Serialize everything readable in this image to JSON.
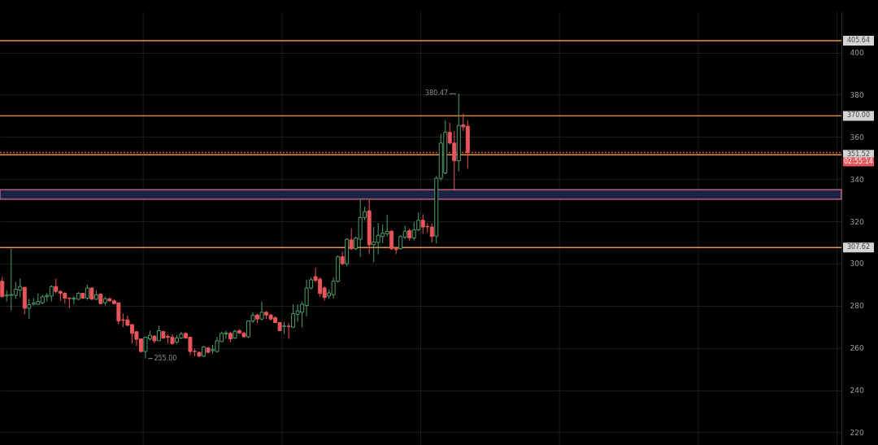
{
  "chart_data": {
    "type": "candlestick",
    "categories": [
      null,
      null,
      null,
      null,
      null,
      null,
      null,
      null,
      null,
      null,
      null,
      null,
      null,
      null,
      null,
      null,
      null,
      null,
      null,
      null,
      null,
      null,
      null,
      null,
      null,
      null,
      null,
      null,
      null,
      null,
      null,
      null,
      null,
      null,
      null,
      null,
      null,
      null,
      null,
      null,
      null,
      null,
      null,
      null,
      null,
      null,
      null,
      null,
      null,
      null,
      null,
      null,
      null,
      null,
      null,
      null,
      null,
      null,
      null,
      null,
      null,
      null,
      null,
      null,
      null,
      null,
      null,
      null,
      null,
      null,
      null,
      null,
      null,
      null,
      null,
      null,
      null,
      null,
      null,
      null,
      null,
      null,
      null,
      null,
      null,
      null,
      null,
      null,
      null,
      null,
      null,
      null,
      null,
      null,
      null,
      null,
      null,
      null,
      null,
      null,
      null,
      null,
      null,
      null,
      null,
      null,
      null,
      null,
      null,
      null,
      null,
      null,
      null,
      null,
      null,
      null,
      null,
      null,
      null,
      null,
      null,
      null,
      null,
      null,
      null,
      null,
      null,
      null,
      null,
      null,
      null,
      null,
      null,
      null,
      null,
      null,
      null,
      null,
      null,
      null,
      null,
      null,
      null,
      null,
      null,
      null,
      null,
      null,
      null,
      null,
      null,
      null,
      null,
      null,
      null,
      null,
      null,
      null,
      null,
      null,
      null,
      null,
      null,
      null,
      null,
      null,
      null,
      null,
      null,
      null,
      null,
      null,
      null,
      null,
      null,
      null,
      null,
      null,
      null,
      null,
      null,
      null,
      null,
      null,
      null,
      null,
      null,
      null
    ],
    "ohlc": [
      [
        291.6,
        293.6,
        284.0,
        284.3
      ],
      [
        284.6,
        287.2,
        282.0,
        285.2
      ],
      [
        284.9,
        307.0,
        277.9,
        285.3
      ],
      [
        284.9,
        291.3,
        283.3,
        287.8
      ],
      [
        287.4,
        292.9,
        284.0,
        289.1
      ],
      [
        288.7,
        289.0,
        275.9,
        278.8
      ],
      [
        278.8,
        283.3,
        273.7,
        280.5
      ],
      [
        280.7,
        283.6,
        280.1,
        281.3
      ],
      [
        280.7,
        285.9,
        280.7,
        282.0
      ],
      [
        281.4,
        285.2,
        280.7,
        284.3
      ],
      [
        284.3,
        285.9,
        282.0,
        284.9
      ],
      [
        284.6,
        289.7,
        282.0,
        289.1
      ],
      [
        289.1,
        292.9,
        285.9,
        286.8
      ],
      [
        286.8,
        287.4,
        282.3,
        285.9
      ],
      [
        285.9,
        286.5,
        281.0,
        283.6
      ],
      [
        283.6,
        284.0,
        278.8,
        283.4
      ],
      [
        283.1,
        284.6,
        280.7,
        283.6
      ],
      [
        283.1,
        286.5,
        282.7,
        285.9
      ],
      [
        285.9,
        286.1,
        283.3,
        283.6
      ],
      [
        283.6,
        290.0,
        282.7,
        288.4
      ],
      [
        288.4,
        288.7,
        282.7,
        283.1
      ],
      [
        283.1,
        287.2,
        282.7,
        285.2
      ],
      [
        285.5,
        285.9,
        280.7,
        281.0
      ],
      [
        281.4,
        284.3,
        280.1,
        283.3
      ],
      [
        283.3,
        283.9,
        282.0,
        282.3
      ],
      [
        282.3,
        283.1,
        280.7,
        281.0
      ],
      [
        281.4,
        281.4,
        271.1,
        272.8
      ],
      [
        273.3,
        276.3,
        269.9,
        273.1
      ],
      [
        273.3,
        275.4,
        270.5,
        270.7
      ],
      [
        271.1,
        271.1,
        262.2,
        266.9
      ],
      [
        267.7,
        267.7,
        260.9,
        264.1
      ],
      [
        264.3,
        264.3,
        257.9,
        258.3
      ],
      [
        258.3,
        265.1,
        255.0,
        265.1
      ],
      [
        264.3,
        268.2,
        263.4,
        266.0
      ],
      [
        265.6,
        266.0,
        262.2,
        263.4
      ],
      [
        263.4,
        270.5,
        263.4,
        268.2
      ],
      [
        267.7,
        268.2,
        264.3,
        264.7
      ],
      [
        265.5,
        266.6,
        262.1,
        265.1
      ],
      [
        265.1,
        266.6,
        261.5,
        262.1
      ],
      [
        262.8,
        266.0,
        261.8,
        264.7
      ],
      [
        264.7,
        267.7,
        264.3,
        266.6
      ],
      [
        266.9,
        267.3,
        264.3,
        264.7
      ],
      [
        265.1,
        265.1,
        256.6,
        258.3
      ],
      [
        258.4,
        259.6,
        256.1,
        258.3
      ],
      [
        257.9,
        258.3,
        255.6,
        256.1
      ],
      [
        256.1,
        260.9,
        255.7,
        260.5
      ],
      [
        260.0,
        260.5,
        257.4,
        257.9
      ],
      [
        258.7,
        261.5,
        257.4,
        259.2
      ],
      [
        258.3,
        265.3,
        257.9,
        263.4
      ],
      [
        263.0,
        267.7,
        262.8,
        266.9
      ],
      [
        266.6,
        268.2,
        264.3,
        267.1
      ],
      [
        266.9,
        267.7,
        262.8,
        264.3
      ],
      [
        264.7,
        268.6,
        264.3,
        267.9
      ],
      [
        268.2,
        268.9,
        266.6,
        267.1
      ],
      [
        267.1,
        267.7,
        265.1,
        265.3
      ],
      [
        265.3,
        273.0,
        264.7,
        272.8
      ],
      [
        272.8,
        276.9,
        271.8,
        275.4
      ],
      [
        275.6,
        276.2,
        271.8,
        273.7
      ],
      [
        273.7,
        282.0,
        273.0,
        276.9
      ],
      [
        276.9,
        277.5,
        273.7,
        275.6
      ],
      [
        275.6,
        276.2,
        273.0,
        273.7
      ],
      [
        274.3,
        275.0,
        271.8,
        272.0
      ],
      [
        272.0,
        272.4,
        267.9,
        268.2
      ],
      [
        270.2,
        272.4,
        266.6,
        270.4
      ],
      [
        270.3,
        271.8,
        264.3,
        270.2
      ],
      [
        269.8,
        280.7,
        269.4,
        276.2
      ],
      [
        275.9,
        280.7,
        272.4,
        277.5
      ],
      [
        276.9,
        282.0,
        269.8,
        280.7
      ],
      [
        280.1,
        292.3,
        275.0,
        288.4
      ],
      [
        288.4,
        293.5,
        287.8,
        292.3
      ],
      [
        293.8,
        298.0,
        291.0,
        292.0
      ],
      [
        292.6,
        293.5,
        284.3,
        285.8
      ],
      [
        288.4,
        289.3,
        282.4,
        283.9
      ],
      [
        284.6,
        287.8,
        283.3,
        286.1
      ],
      [
        285.2,
        293.5,
        283.3,
        291.6
      ],
      [
        291.6,
        303.8,
        291.0,
        303.2
      ],
      [
        303.2,
        305.7,
        299.3,
        299.9
      ],
      [
        299.9,
        312.1,
        298.7,
        311.5
      ],
      [
        311.2,
        316.6,
        306.4,
        307.0
      ],
      [
        307.0,
        312.8,
        306.4,
        312.1
      ],
      [
        311.5,
        330.7,
        303.2,
        321.8
      ],
      [
        321.8,
        326.9,
        320.5,
        324.6
      ],
      [
        325.0,
        330.7,
        304.4,
        308.9
      ],
      [
        308.9,
        317.3,
        300.6,
        310.2
      ],
      [
        310.0,
        319.2,
        304.4,
        313.4
      ],
      [
        312.8,
        318.5,
        309.6,
        314.4
      ],
      [
        314.1,
        323.0,
        312.8,
        315.3
      ],
      [
        315.3,
        316.0,
        306.4,
        307.0
      ],
      [
        307.0,
        307.7,
        304.4,
        306.6
      ],
      [
        307.0,
        313.4,
        306.6,
        312.8
      ],
      [
        312.5,
        317.9,
        311.5,
        315.3
      ],
      [
        315.6,
        316.6,
        310.9,
        312.1
      ],
      [
        312.1,
        319.8,
        310.9,
        316.0
      ],
      [
        316.0,
        324.3,
        315.3,
        320.5
      ],
      [
        320.5,
        323.3,
        314.1,
        317.3
      ],
      [
        317.6,
        319.2,
        314.7,
        317.4
      ],
      [
        317.3,
        318.9,
        310.0,
        312.8
      ],
      [
        313.0,
        341.5,
        309.5,
        340.4
      ],
      [
        340.4,
        361.5,
        339.1,
        357.1
      ],
      [
        342.9,
        367.9,
        342.3,
        362.2
      ],
      [
        362.2,
        366.7,
        356.4,
        357.1
      ],
      [
        357.1,
        362.8,
        334.6,
        348.7
      ],
      [
        348.7,
        380.47,
        343.6,
        365.4
      ],
      [
        365.7,
        371.2,
        362.8,
        364.8
      ],
      [
        365.1,
        367.9,
        344.9,
        352.6
      ],
      null,
      null,
      null,
      null,
      null,
      null,
      null,
      null,
      null,
      null,
      null,
      null,
      null,
      null,
      null,
      null,
      null,
      null,
      null,
      null,
      null,
      null,
      null,
      null,
      null,
      null,
      null,
      null,
      null,
      null,
      null,
      null,
      null,
      null,
      null,
      null,
      null,
      null,
      null,
      null,
      null,
      null,
      null,
      null,
      null,
      null,
      null,
      null,
      null,
      null,
      null,
      null,
      null,
      null,
      null,
      null,
      null,
      null,
      null,
      null,
      null,
      null,
      null,
      null,
      null,
      null,
      null,
      null,
      null,
      null,
      null,
      null,
      null,
      null,
      null,
      null,
      null,
      null,
      null,
      null,
      null,
      null,
      null
    ],
    "colors": [
      "#e8555a",
      "#4f9d6c",
      "#4f9d6c",
      "#4f9d6c",
      "#4f9d6c",
      "#e8555a",
      "#4f9d6c",
      "#4f9d6c",
      "#4f9d6c",
      "#4f9d6c",
      "#4f9d6c",
      "#4f9d6c",
      "#e8555a",
      "#e8555a",
      "#e8555a",
      "#e8555a",
      "#4f9d6c",
      "#4f9d6c",
      "#e8555a",
      "#4f9d6c",
      "#e8555a",
      "#4f9d6c",
      "#e8555a",
      "#4f9d6c",
      "#e8555a",
      "#e8555a",
      "#e8555a",
      "#e8555a",
      "#e8555a",
      "#e8555a",
      "#e8555a",
      "#e8555a",
      "#4f9d6c",
      "#4f9d6c",
      "#e8555a",
      "#4f9d6c",
      "#e8555a",
      "#e8555a",
      "#e8555a",
      "#4f9d6c",
      "#4f9d6c",
      "#e8555a",
      "#e8555a",
      "#e8555a",
      "#e8555a",
      "#4f9d6c",
      "#e8555a",
      "#4f9d6c",
      "#4f9d6c",
      "#4f9d6c",
      "#4f9d6c",
      "#e8555a",
      "#4f9d6c",
      "#e8555a",
      "#e8555a",
      "#4f9d6c",
      "#4f9d6c",
      "#e8555a",
      "#4f9d6c",
      "#e8555a",
      "#e8555a",
      "#e8555a",
      "#e8555a",
      "#4f9d6c",
      "#e8555a",
      "#4f9d6c",
      "#4f9d6c",
      "#4f9d6c",
      "#4f9d6c",
      "#4f9d6c",
      "#e8555a",
      "#e8555a",
      "#e8555a",
      "#4f9d6c",
      "#4f9d6c",
      "#4f9d6c",
      "#e8555a",
      "#4f9d6c",
      "#e8555a",
      "#4f9d6c",
      "#4f9d6c",
      "#4f9d6c",
      "#e8555a",
      "#4f9d6c",
      "#4f9d6c",
      "#4f9d6c",
      "#4f9d6c",
      "#e8555a",
      "#e8555a",
      "#4f9d6c",
      "#4f9d6c",
      "#e8555a",
      "#4f9d6c",
      "#4f9d6c",
      "#e8555a",
      "#e8555a",
      "#e8555a",
      "#4f9d6c",
      "#4f9d6c",
      "#4f9d6c",
      "#e8555a",
      "#e8555a",
      "#4f9d6c",
      "#e8555a",
      "#e8555a",
      null,
      null,
      null,
      null,
      null,
      null,
      null,
      null,
      null,
      null,
      null,
      null,
      null,
      null,
      null,
      null,
      null,
      null,
      null,
      null,
      null,
      null,
      null,
      null,
      null,
      null,
      null,
      null,
      null,
      null,
      null,
      null,
      null,
      null,
      null,
      null,
      null,
      null,
      null,
      null,
      null,
      null,
      null,
      null,
      null,
      null,
      null,
      null,
      null,
      null,
      null,
      null,
      null,
      null,
      null,
      null,
      null,
      null,
      null,
      null,
      null,
      null,
      null,
      null,
      null,
      null,
      null,
      null,
      null,
      null,
      null,
      null,
      null,
      null,
      null,
      null,
      null,
      null,
      null,
      null,
      null,
      null,
      null
    ],
    "ylim": [
      214,
      419.5
    ],
    "yticks": [
      220,
      240,
      260,
      280,
      300,
      320,
      340,
      360,
      380,
      400
    ],
    "tick_labels": "y",
    "grid": true,
    "ref_lines": [
      {
        "axis": "y",
        "value": 405.64,
        "label": "405.64",
        "color": "#e8923a"
      },
      {
        "axis": "y",
        "value": 370.0,
        "label": "370.00",
        "color": "#e8923a"
      },
      {
        "axis": "y",
        "value": 351.52,
        "label": "351.52",
        "color": "#e8923a"
      },
      {
        "axis": "y",
        "value": 307.62,
        "label": "307.62",
        "color": "#e8923a"
      },
      {
        "axis": "y",
        "value": 352.6,
        "color": "#e8474c",
        "line_style": "dotted"
      }
    ],
    "bands": [
      {
        "axis": "y",
        "from": 330.5,
        "to": 335.0,
        "color": "#1b2447"
      }
    ],
    "annotations": [
      "380.47",
      "255.00",
      "02:55:14"
    ]
  }
}
